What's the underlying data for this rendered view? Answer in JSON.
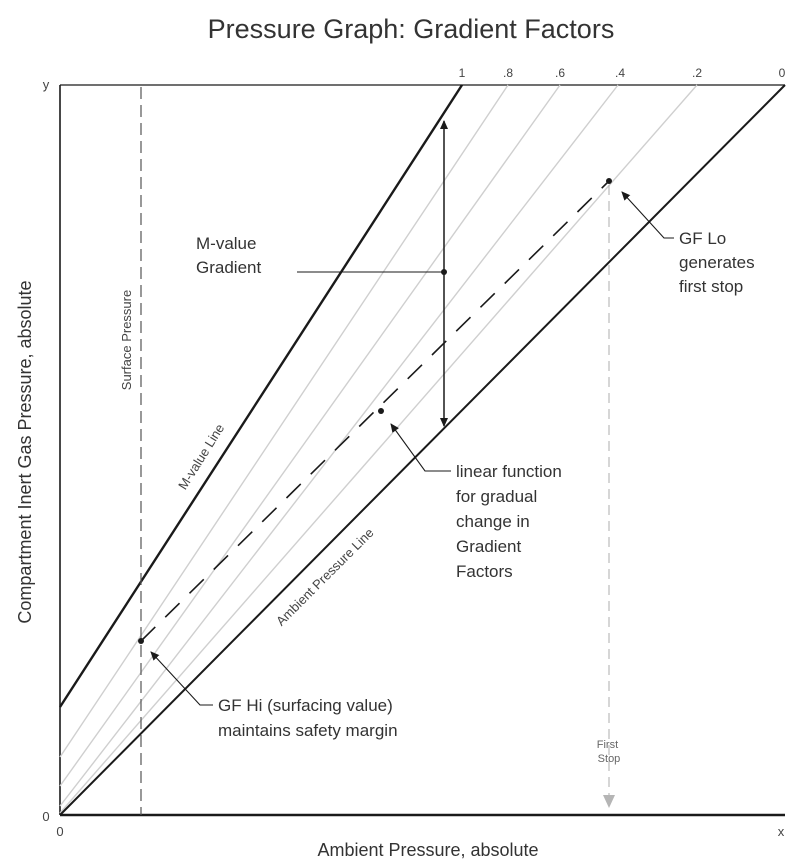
{
  "title": "Pressure Graph:   Gradient Factors",
  "axes": {
    "x_label": "Ambient Pressure, absolute",
    "y_label": "Compartment Inert Gas Pressure, absolute",
    "x_origin": "0",
    "x_end": "x",
    "y_origin": "0",
    "y_end": "y"
  },
  "gradient_factor_ticks": [
    "1",
    ".8",
    ".6",
    ".4",
    ".2",
    "0"
  ],
  "lines": {
    "m_value": "M-value Line",
    "ambient": "Ambient Pressure Line",
    "surface": "Surface Pressure",
    "first_stop": "First Stop"
  },
  "annotations": {
    "m_value_gradient": [
      "M-value",
      "Gradient"
    ],
    "gf_lo": [
      "GF Lo",
      "generates",
      "first stop"
    ],
    "linear_function": [
      "linear function",
      "for gradual",
      "change in",
      "Gradient",
      "Factors"
    ],
    "gf_hi": [
      "GF Hi  (surfacing value)",
      "maintains safety margin"
    ]
  },
  "colors": {
    "text": "#333333",
    "line": "#1a1a1a",
    "gf_lines": "#cfcfcf",
    "first_stop_marker": "#b5b5b5"
  }
}
